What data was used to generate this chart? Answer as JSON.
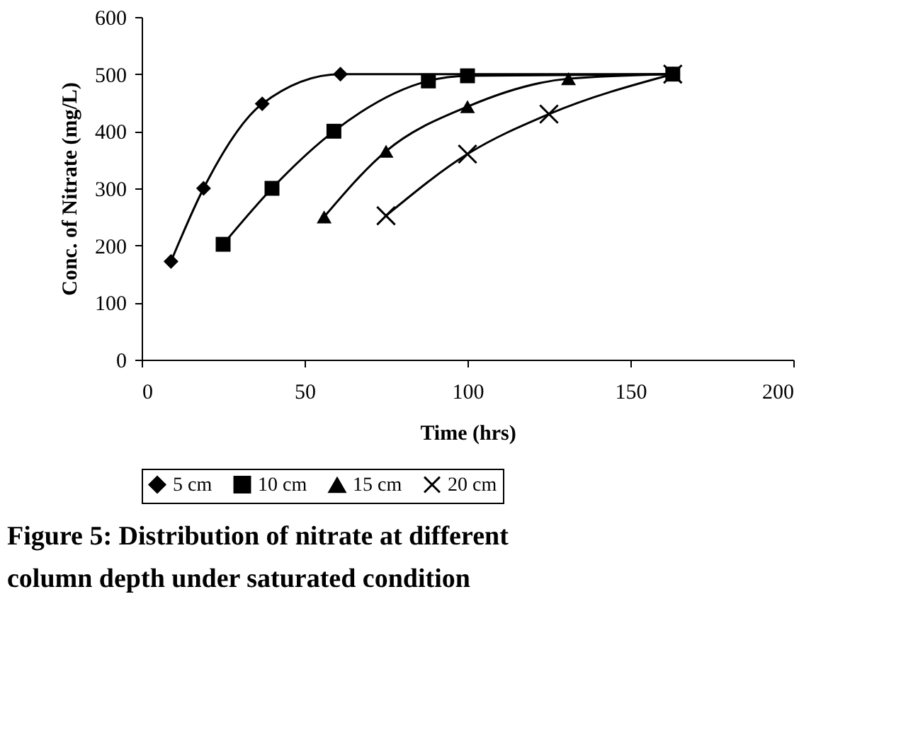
{
  "chart_data": {
    "type": "line",
    "xlabel": "Time (hrs)",
    "ylabel": "Conc. of Nitrate (mg/L)",
    "xlim": [
      0,
      200
    ],
    "xticks": [
      0,
      50,
      100,
      150,
      200
    ],
    "ylim": [
      0,
      600
    ],
    "yticks": [
      0,
      100,
      200,
      300,
      400,
      500,
      600
    ],
    "grid": false,
    "legend": "bottom",
    "series": [
      {
        "name": "5 cm",
        "color": "#000000",
        "marker": "diamond",
        "x": [
          9,
          19,
          37,
          61,
          163
        ],
        "values": [
          172,
          300,
          448,
          500,
          500
        ]
      },
      {
        "name": "10 cm",
        "color": "#000000",
        "marker": "square",
        "x": [
          25,
          40,
          59,
          88,
          100,
          163
        ],
        "values": [
          202,
          300,
          400,
          488,
          497,
          500
        ]
      },
      {
        "name": "15 cm",
        "color": "#000000",
        "marker": "triangle",
        "x": [
          56,
          75,
          100,
          131,
          163
        ],
        "values": [
          250,
          365,
          443,
          492,
          500
        ]
      },
      {
        "name": "20 cm",
        "color": "#000000",
        "marker": "cross",
        "x": [
          75,
          100,
          125,
          163
        ],
        "values": [
          252,
          360,
          430,
          500
        ]
      }
    ],
    "annotations": [
      "Figure 5: Distribution of nitrate at different column depth under saturated condition"
    ]
  }
}
